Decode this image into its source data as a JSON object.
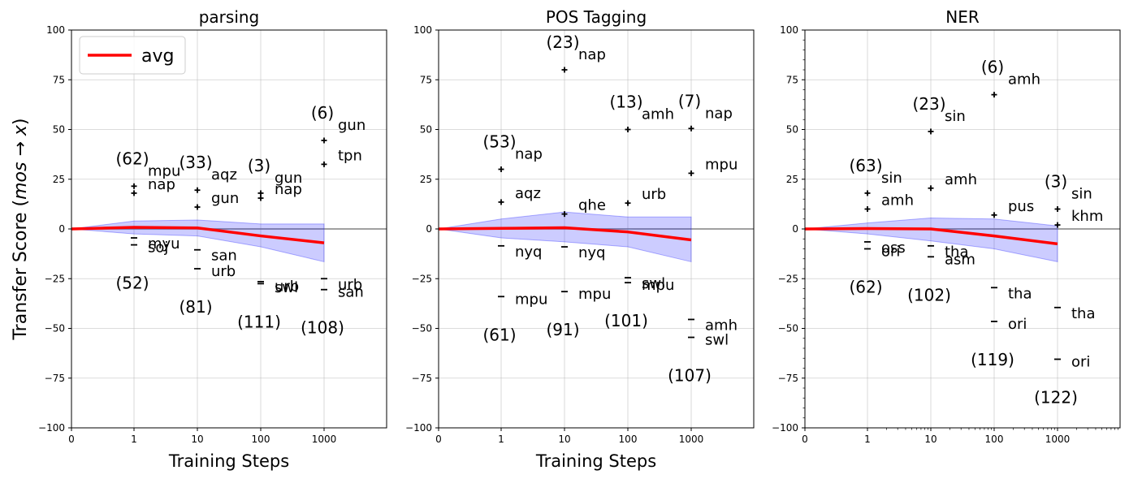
{
  "figure": {
    "ylabel": "Transfer Score ($mos \\rightarrow x$)",
    "ylabel_parts": {
      "main": "Transfer Score (",
      "math": "mos",
      "arrow": " → ",
      "var": "x",
      "close": ")"
    },
    "xtick_labels": [
      "0",
      "1",
      "10",
      "100",
      "1000"
    ],
    "ytick_labels": [
      "100",
      "75",
      "50",
      "25",
      "0",
      "−25",
      "−50",
      "−75",
      "−100"
    ],
    "legend_label": "avg",
    "colors": {
      "avg": "#ff0000",
      "band": "#0000ff",
      "zero_line": "#808080",
      "marker": "#000000"
    }
  },
  "chart_data": [
    {
      "type": "line",
      "title": "parsing",
      "xlabel": "Training Steps",
      "ylim": [
        -100,
        100
      ],
      "x_steps": [
        0,
        1,
        10,
        100,
        1000
      ],
      "avg": [
        0,
        0.8,
        0.5,
        -3.5,
        -7
      ],
      "band_upper": [
        0,
        4,
        4.5,
        2.5,
        2.5
      ],
      "band_lower": [
        0,
        -2.5,
        -3.5,
        -9,
        -16.5
      ],
      "groups": [
        {
          "step": 1,
          "top_count": "(62)",
          "bottom_count": "(52)",
          "top": [
            {
              "name": "mpu",
              "value": 21.5
            },
            {
              "name": "nap",
              "value": 18
            }
          ],
          "bottom": [
            {
              "name": "myu",
              "value": -4.5
            },
            {
              "name": "soj",
              "value": -8
            }
          ]
        },
        {
          "step": 10,
          "top_count": "(33)",
          "bottom_count": "(81)",
          "top": [
            {
              "name": "aqz",
              "value": 19.5
            },
            {
              "name": "gun",
              "value": 11
            }
          ],
          "bottom": [
            {
              "name": "san",
              "value": -10.5
            },
            {
              "name": "urb",
              "value": -20
            }
          ]
        },
        {
          "step": 100,
          "top_count": "(3)",
          "bottom_count": "(111)",
          "top": [
            {
              "name": "gun",
              "value": 18
            },
            {
              "name": "nap",
              "value": 15.5
            }
          ],
          "bottom": [
            {
              "name": "swl",
              "value": -26.5
            },
            {
              "name": "urb",
              "value": -27.5
            }
          ]
        },
        {
          "step": 1000,
          "top_count": "(6)",
          "bottom_count": "(108)",
          "top": [
            {
              "name": "gun",
              "value": 44.5
            },
            {
              "name": "tpn",
              "value": 32.5
            }
          ],
          "bottom": [
            {
              "name": "urb",
              "value": -25
            },
            {
              "name": "san",
              "value": -30.5
            }
          ]
        }
      ]
    },
    {
      "type": "line",
      "title": "POS Tagging",
      "xlabel": "Training Steps",
      "ylim": [
        -100,
        100
      ],
      "x_steps": [
        0,
        1,
        10,
        100,
        1000
      ],
      "avg": [
        0,
        0.3,
        0.6,
        -1.5,
        -5.5
      ],
      "band_upper": [
        0,
        5,
        8.5,
        6,
        6
      ],
      "band_lower": [
        0,
        -4.5,
        -6.5,
        -9,
        -16.5
      ],
      "groups": [
        {
          "step": 1,
          "top_count": "(53)",
          "bottom_count": "(61)",
          "top": [
            {
              "name": "nap",
              "value": 30
            },
            {
              "name": "aqz",
              "value": 13.5
            }
          ],
          "bottom": [
            {
              "name": "nyq",
              "value": -8.5
            },
            {
              "name": "mpu",
              "value": -34
            }
          ]
        },
        {
          "step": 10,
          "top_count": "(23)",
          "bottom_count": "(91)",
          "top": [
            {
              "name": "nap",
              "value": 80
            },
            {
              "name": "qhe",
              "value": 7.5
            }
          ],
          "bottom": [
            {
              "name": "nyq",
              "value": -9
            },
            {
              "name": "mpu",
              "value": -31.5
            }
          ]
        },
        {
          "step": 100,
          "top_count": "(13)",
          "bottom_count": "(101)",
          "top": [
            {
              "name": "amh",
              "value": 50
            },
            {
              "name": "urb",
              "value": 13
            }
          ],
          "bottom": [
            {
              "name": "swl",
              "value": -24.5
            },
            {
              "name": "mpu",
              "value": -27
            }
          ]
        },
        {
          "step": 1000,
          "top_count": "(7)",
          "bottom_count": "(107)",
          "top": [
            {
              "name": "nap",
              "value": 50.5
            },
            {
              "name": "mpu",
              "value": 28
            }
          ],
          "bottom": [
            {
              "name": "amh",
              "value": -45.5
            },
            {
              "name": "swl",
              "value": -54.5
            }
          ]
        }
      ]
    },
    {
      "type": "line",
      "title": "NER",
      "xlabel": "",
      "ylim": [
        -100,
        100
      ],
      "x_steps": [
        0,
        1,
        10,
        100,
        1000
      ],
      "avg": [
        0,
        0.2,
        0,
        -3.5,
        -7.5
      ],
      "band_upper": [
        0,
        3,
        5.5,
        5,
        1.5
      ],
      "band_lower": [
        0,
        -2.5,
        -6,
        -10,
        -16.5
      ],
      "groups": [
        {
          "step": 1,
          "top_count": "(63)",
          "bottom_count": "(62)",
          "top": [
            {
              "name": "sin",
              "value": 18
            },
            {
              "name": "amh",
              "value": 10
            }
          ],
          "bottom": [
            {
              "name": "oss",
              "value": -6.5
            },
            {
              "name": "ori",
              "value": -10
            }
          ]
        },
        {
          "step": 10,
          "top_count": "(23)",
          "bottom_count": "(102)",
          "top": [
            {
              "name": "sin",
              "value": 49
            },
            {
              "name": "amh",
              "value": 20.5
            }
          ],
          "bottom": [
            {
              "name": "tha",
              "value": -8.5
            },
            {
              "name": "asm",
              "value": -14
            }
          ]
        },
        {
          "step": 100,
          "top_count": "(6)",
          "bottom_count": "(119)",
          "top": [
            {
              "name": "amh",
              "value": 67.5
            },
            {
              "name": "pus",
              "value": 7
            }
          ],
          "bottom": [
            {
              "name": "tha",
              "value": -29.5
            },
            {
              "name": "ori",
              "value": -46.5
            }
          ]
        },
        {
          "step": 1000,
          "top_count": "(3)",
          "bottom_count": "(122)",
          "top": [
            {
              "name": "sin",
              "value": 10
            },
            {
              "name": "khm",
              "value": 2
            }
          ],
          "bottom": [
            {
              "name": "tha",
              "value": -39.5
            },
            {
              "name": "ori",
              "value": -65.5
            }
          ]
        }
      ]
    }
  ]
}
